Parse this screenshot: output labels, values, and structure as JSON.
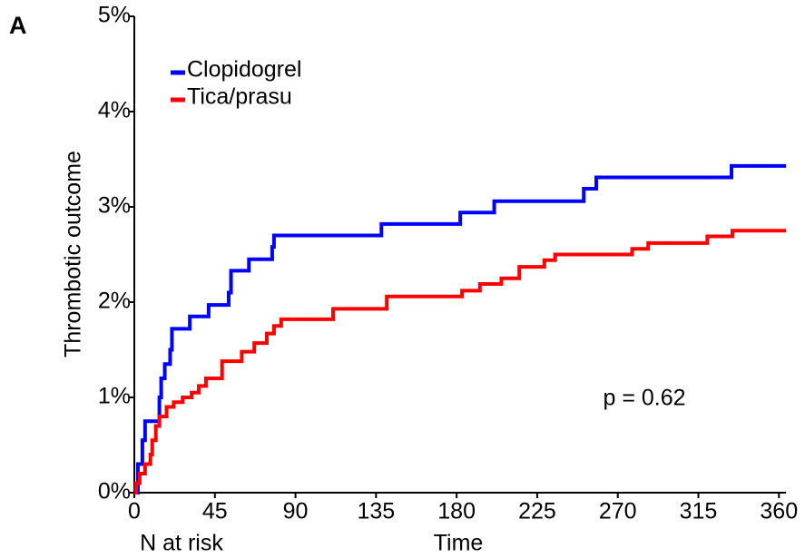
{
  "chart_data": {
    "type": "step",
    "panel_label": "A",
    "ylabel": "Thrombotic outcome",
    "xlabel": "Time",
    "risk_label": "N at risk",
    "annotation": "p = 0.62",
    "xlim": [
      0,
      364
    ],
    "ylim": [
      0,
      5
    ],
    "xticks": [
      0,
      45,
      90,
      135,
      180,
      225,
      270,
      315,
      360
    ],
    "yticks": [
      {
        "value": 0,
        "label": "0%"
      },
      {
        "value": 1,
        "label": "1%"
      },
      {
        "value": 2,
        "label": "2%"
      },
      {
        "value": 3,
        "label": "3%"
      },
      {
        "value": 4,
        "label": "4%"
      },
      {
        "value": 5,
        "label": "5%"
      }
    ],
    "series": [
      {
        "name": "Clopidogrel",
        "color": "#0000ff",
        "x": [
          0,
          2,
          4.5,
          6,
          12.7,
          14,
          15,
          17,
          20,
          21,
          31,
          41.5,
          52.7,
          54,
          64,
          77,
          78,
          138,
          182,
          201,
          251,
          258,
          333.5,
          364
        ],
        "values": [
          0,
          0.3,
          0.55,
          0.75,
          0.75,
          1.0,
          1.2,
          1.35,
          1.5,
          1.72,
          1.85,
          1.97,
          2.1,
          2.33,
          2.45,
          2.58,
          2.7,
          2.82,
          2.94,
          3.06,
          3.19,
          3.31,
          3.43,
          3.43
        ]
      },
      {
        "name": "Tica/prasu",
        "color": "#ff0000",
        "x": [
          0,
          1,
          3,
          6,
          9,
          10,
          12,
          14,
          18,
          22,
          27,
          32,
          36,
          40,
          49,
          60,
          67,
          74,
          78,
          82,
          111,
          141,
          183,
          193,
          205,
          215,
          229,
          235,
          278,
          287,
          320,
          334,
          364
        ],
        "values": [
          0,
          0.1,
          0.2,
          0.3,
          0.4,
          0.55,
          0.7,
          0.8,
          0.9,
          0.95,
          1.0,
          1.05,
          1.12,
          1.2,
          1.38,
          1.48,
          1.57,
          1.67,
          1.75,
          1.82,
          1.93,
          2.06,
          2.12,
          2.19,
          2.25,
          2.37,
          2.44,
          2.5,
          2.56,
          2.62,
          2.69,
          2.75,
          2.75
        ]
      }
    ]
  }
}
